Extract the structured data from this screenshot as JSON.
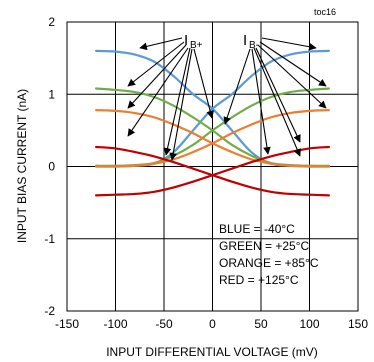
{
  "chart_data": {
    "type": "line",
    "tag": "toc16",
    "xlabel": "INPUT DIFFERENTIAL VOLTAGE (mV)",
    "ylabel": "INPUT BIAS CURRENT (nA)",
    "xlim": [
      -150,
      150
    ],
    "ylim": [
      -2,
      2
    ],
    "xticks": [
      -150,
      -100,
      -50,
      0,
      50,
      100,
      150
    ],
    "yticks": [
      -2,
      -1,
      0,
      1,
      2
    ],
    "grid": true,
    "colors": {
      "blue": "#5b9bd5",
      "green": "#70ad47",
      "orange": "#ed7d31",
      "red": "#c00000"
    },
    "labels": {
      "ib_plus_main": "I",
      "ib_plus_sub": "B+",
      "ib_minus_main": "I",
      "ib_minus_sub": "B-"
    },
    "legend_lines": [
      "BLUE = -40°C",
      "GREEN = +25°C",
      "ORANGE = +85°C",
      "RED = +125°C"
    ],
    "series": [
      {
        "name": "IB+ -40°C",
        "color_key": "blue",
        "x": [
          -120,
          -100,
          -80,
          -60,
          -40,
          -20,
          0,
          20,
          40,
          60,
          80,
          100,
          120
        ],
        "y": [
          1.6,
          1.59,
          1.55,
          1.45,
          1.25,
          1.0,
          0.8,
          0.5,
          0.2,
          0.04,
          0.01,
          0.0,
          0.0
        ]
      },
      {
        "name": "IB- -40°C",
        "color_key": "blue",
        "x": [
          -120,
          -100,
          -80,
          -60,
          -40,
          -20,
          0,
          20,
          40,
          60,
          80,
          100,
          120
        ],
        "y": [
          0.0,
          0.0,
          0.01,
          0.04,
          0.2,
          0.5,
          0.8,
          1.0,
          1.25,
          1.45,
          1.55,
          1.59,
          1.6
        ]
      },
      {
        "name": "IB+ +25°C",
        "color_key": "green",
        "x": [
          -120,
          -100,
          -80,
          -60,
          -40,
          -20,
          0,
          20,
          40,
          60,
          80,
          100,
          120
        ],
        "y": [
          1.08,
          1.06,
          1.03,
          0.96,
          0.84,
          0.68,
          0.5,
          0.3,
          0.15,
          0.05,
          0.02,
          0.01,
          0.01
        ]
      },
      {
        "name": "IB- +25°C",
        "color_key": "green",
        "x": [
          -120,
          -100,
          -80,
          -60,
          -40,
          -20,
          0,
          20,
          40,
          60,
          80,
          100,
          120
        ],
        "y": [
          0.01,
          0.01,
          0.02,
          0.05,
          0.15,
          0.3,
          0.5,
          0.68,
          0.84,
          0.96,
          1.03,
          1.06,
          1.08
        ]
      },
      {
        "name": "IB+ +85°C",
        "color_key": "orange",
        "x": [
          -120,
          -100,
          -80,
          -60,
          -40,
          -20,
          0,
          20,
          40,
          60,
          80,
          100,
          120
        ],
        "y": [
          0.78,
          0.77,
          0.74,
          0.68,
          0.58,
          0.46,
          0.32,
          0.2,
          0.1,
          0.04,
          0.01,
          0.0,
          0.0
        ]
      },
      {
        "name": "IB- +85°C",
        "color_key": "orange",
        "x": [
          -120,
          -100,
          -80,
          -60,
          -40,
          -20,
          0,
          20,
          40,
          60,
          80,
          100,
          120
        ],
        "y": [
          0.0,
          0.0,
          0.01,
          0.04,
          0.1,
          0.2,
          0.32,
          0.46,
          0.58,
          0.68,
          0.74,
          0.77,
          0.78
        ]
      },
      {
        "name": "IB+ +125°C",
        "color_key": "red",
        "x": [
          -120,
          -100,
          -80,
          -60,
          -40,
          -20,
          0,
          20,
          40,
          60,
          80,
          100,
          120
        ],
        "y": [
          0.27,
          0.25,
          0.2,
          0.14,
          0.06,
          -0.03,
          -0.12,
          -0.21,
          -0.29,
          -0.35,
          -0.38,
          -0.39,
          -0.4
        ]
      },
      {
        "name": "IB- +125°C",
        "color_key": "red",
        "x": [
          -120,
          -100,
          -80,
          -60,
          -40,
          -20,
          0,
          20,
          40,
          60,
          80,
          100,
          120
        ],
        "y": [
          -0.4,
          -0.39,
          -0.38,
          -0.35,
          -0.29,
          -0.21,
          -0.12,
          -0.03,
          0.06,
          0.14,
          0.2,
          0.25,
          0.27
        ]
      }
    ]
  }
}
